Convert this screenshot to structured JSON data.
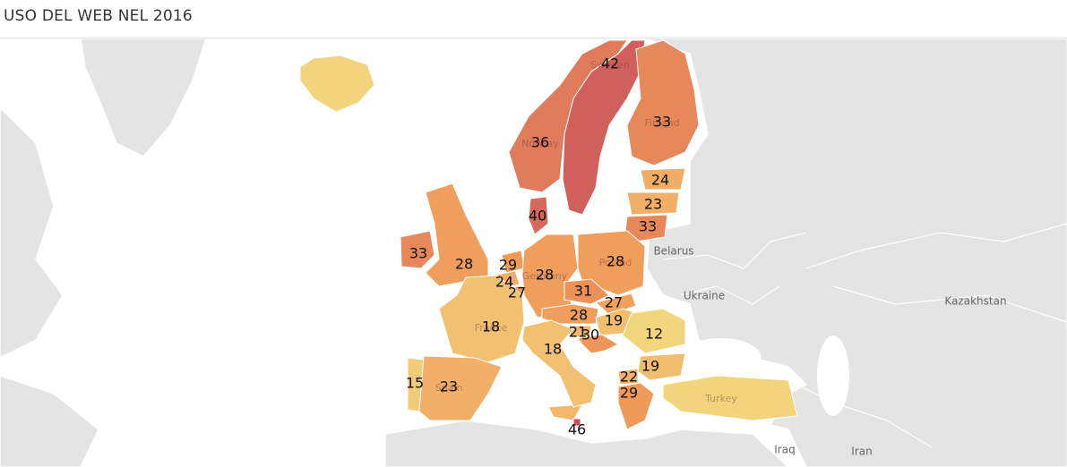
{
  "header": {
    "title": "USO DEL WEB NEL 2016"
  },
  "regions": [
    {
      "name": "Sweden",
      "value": 42
    },
    {
      "name": "Finland",
      "value": 33
    },
    {
      "name": "Norway",
      "value": 36
    },
    {
      "value": 24
    },
    {
      "value": 23
    },
    {
      "value": 33
    },
    {
      "value": 40
    },
    {
      "value": 33
    },
    {
      "value": 28
    },
    {
      "value": 29
    },
    {
      "value": 24
    },
    {
      "value": 27
    },
    {
      "name": "Germany",
      "value": 28
    },
    {
      "name": "Poland",
      "value": 28
    },
    {
      "value": 31
    },
    {
      "value": 27
    },
    {
      "value": 28
    },
    {
      "value": 19
    },
    {
      "value": 21
    },
    {
      "value": 30
    },
    {
      "value": 12
    },
    {
      "name": "France",
      "value": 18
    },
    {
      "value": 18
    },
    {
      "value": 19
    },
    {
      "value": 15
    },
    {
      "name": "Spain",
      "value": 23
    },
    {
      "value": 22
    },
    {
      "value": 29
    },
    {
      "value": 46
    }
  ],
  "turkey": "Turkey",
  "places": [
    "Belarus",
    "Ukraine",
    "Kazakhstan",
    "Iraq",
    "Iran"
  ]
}
